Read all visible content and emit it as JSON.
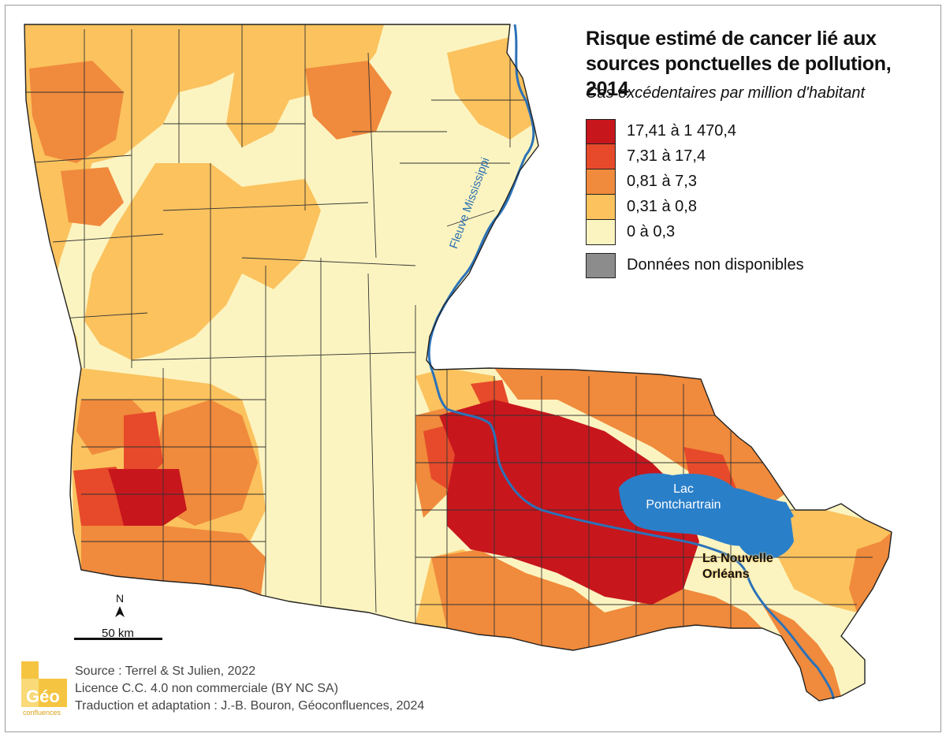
{
  "map": {
    "title": "Risque estimé de cancer lié aux sources ponctuelles de pollution, 2014",
    "subtitle": "Cas excédentaires par million d'habitant",
    "legend": [
      {
        "label": "17,41 à 1 470,4",
        "color": "#c8161d"
      },
      {
        "label": "7,31 à 17,4",
        "color": "#e64a2a"
      },
      {
        "label": "0,81 à 7,3",
        "color": "#f08a3c"
      },
      {
        "label": "0,31 à 0,8",
        "color": "#fbc25e"
      },
      {
        "label": "0 à 0,3",
        "color": "#fcf4c0"
      }
    ],
    "legend_na": {
      "label": "Données non disponibles",
      "color": "#8c8c8c"
    },
    "labels": {
      "lake": "Lac Pontchartrain",
      "city": "La Nouvelle Orléans",
      "river": "Fleuve Mississippi"
    },
    "scale": {
      "label": "50 km"
    },
    "north": "N",
    "credits": [
      "Source : Terrel & St Julien, 2022",
      "Licence C.C. 4.0 non commerciale (BY NC SA)",
      "Traduction et adaptation : J.-B. Bouron, Géoconfluences, 2024"
    ],
    "logo_text": "Géo confluences",
    "colors": {
      "water": "#2a7fc9",
      "river": "#2b72b8",
      "boundary": "#333333"
    }
  }
}
